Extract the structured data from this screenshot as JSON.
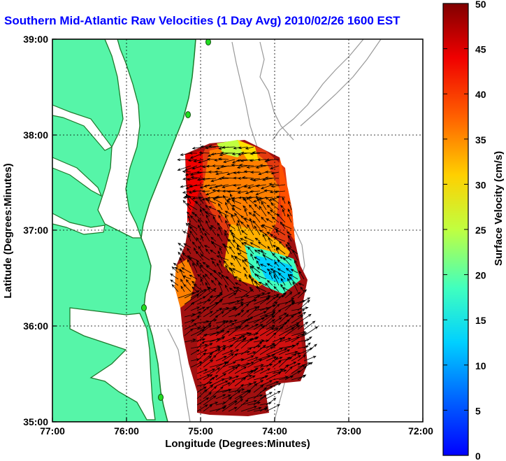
{
  "title": "Southern Mid-Atlantic Raw Velocities (1 Day Avg) 2010/02/26 1600 EST",
  "x_axis": {
    "label": "Longitude (Degrees:Minutes)",
    "ticks": [
      "77:00",
      "76:00",
      "75:00",
      "74:00",
      "73:00",
      "72:00"
    ]
  },
  "y_axis": {
    "label": "Latitude (Degrees:Minutes)",
    "ticks": [
      "39:00",
      "38:00",
      "37:00",
      "36:00",
      "35:00"
    ]
  },
  "colorbar": {
    "label": "Surface Velocity (cm/s)",
    "ticks": [
      "50",
      "45",
      "40",
      "35",
      "30",
      "25",
      "20",
      "15",
      "10",
      "5",
      "0"
    ],
    "range": [
      0,
      50
    ],
    "colormap": "jet"
  },
  "colors": {
    "land": "#56f5a8",
    "coast": "#1d7a2c",
    "bathymetry": "#999999",
    "title": "#0000ff",
    "station": "#22dd22"
  }
}
